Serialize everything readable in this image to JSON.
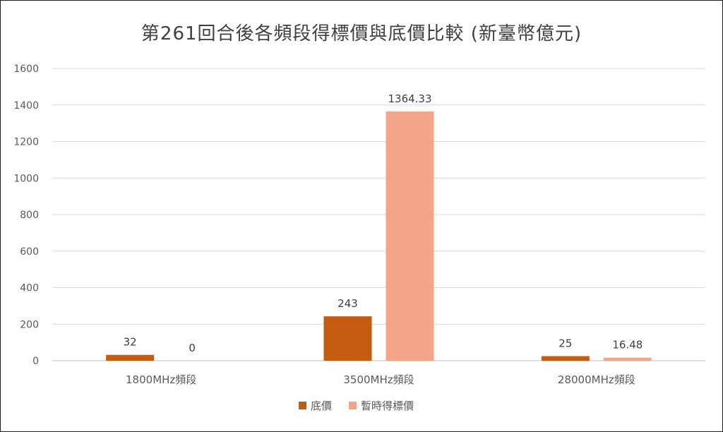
{
  "chart_data": {
    "type": "bar",
    "title": "第261回合後各頻段得標價與底價比較 (新臺幣億元)",
    "categories": [
      "1800MHz頻段",
      "3500MHz頻段",
      "28000MHz頻段"
    ],
    "series": [
      {
        "name": "底價",
        "values": [
          32,
          243,
          25
        ],
        "labels": [
          "32",
          "243",
          "25"
        ],
        "color": "#C55A11"
      },
      {
        "name": "暫時得標價",
        "values": [
          0,
          1364.33,
          16.48
        ],
        "labels": [
          "0",
          "1364.33",
          "16.48"
        ],
        "color": "#F4A589"
      }
    ],
    "ylim": [
      0,
      1600
    ],
    "yticks": [
      0,
      200,
      400,
      600,
      800,
      1000,
      1200,
      1400,
      1600
    ],
    "grid": true,
    "legend_position": "bottom"
  }
}
